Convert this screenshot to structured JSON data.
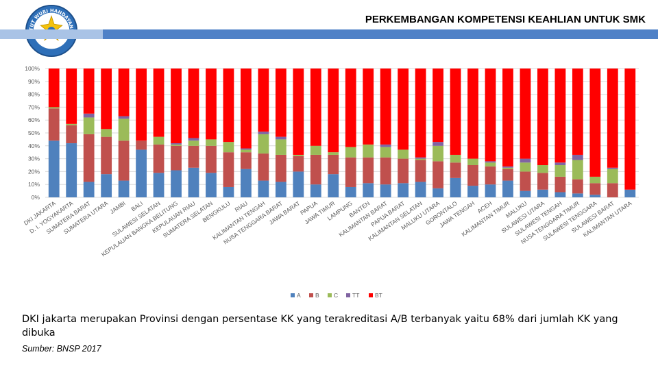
{
  "header": {
    "title": "PERKEMBANGAN KOMPETENSI KEAHLIAN UNTUK SMK",
    "logo_text": "TUT WURI HANDAYANI"
  },
  "caption": "DKI jakarta merupakan Provinsi dengan persentase KK yang terakreditasi A/B terbanyak yaitu 68% dari jumlah KK yang dibuka",
  "source": "Sumber: BNSP 2017",
  "colors": {
    "header_bar": "#4f81c7",
    "header_bar_light": "#a9c3e6",
    "A": "#4f81bd",
    "B": "#c0504d",
    "C": "#9bbb59",
    "TT": "#8064a2",
    "BT": "#ff0000"
  },
  "chart_data": {
    "type": "bar",
    "stacked": true,
    "title": "",
    "xlabel": "",
    "ylabel": "",
    "ylim": [
      0,
      100
    ],
    "y_ticks": [
      "0%",
      "10%",
      "20%",
      "30%",
      "40%",
      "50%",
      "60%",
      "70%",
      "80%",
      "90%",
      "100%"
    ],
    "legend_position": "bottom",
    "categories": [
      "DKI JAKARTA",
      "D. I. YOGYAKARTA",
      "SUMATERA BARAT",
      "SUMATERA UTARA",
      "JAMBI",
      "BALI",
      "SULAWESI SELATAN",
      "KEPULAUAN BANGKA BELITUNG",
      "KEPULAUAN RIAU",
      "SUMATERA SELATAN",
      "BENGKULU",
      "RIAU",
      "KALIMANTAN TENGAH",
      "NUSA TENGGARA BARAT",
      "JAWA BARAT",
      "PAPUA",
      "JAWA TIMUR",
      "LAMPUNG",
      "BANTEN",
      "KALIMANTAN BARAT",
      "PAPUA BARAT",
      "KALIMANTAN SELATAN",
      "MALUKU UTARA",
      "GORONTALO",
      "JAWA TENGAH",
      "ACEH",
      "KALIMANTAN TIMUR",
      "MALUKU",
      "SULAWESI UTARA",
      "SULAWESI TENGAH",
      "NUSA TENGGARA TIMUR",
      "SULAWESI TENGGARA",
      "SULAWESI BARAT",
      "KALIMANTAN UTARA"
    ],
    "series": [
      {
        "name": "A",
        "values": [
          44,
          42,
          12,
          18,
          13,
          37,
          19,
          21,
          23,
          19,
          8,
          22,
          13,
          12,
          20,
          10,
          18,
          8,
          11,
          10,
          11,
          12,
          7,
          15,
          9,
          10,
          13,
          5,
          6,
          4,
          3,
          2,
          0,
          6
        ]
      },
      {
        "name": "B",
        "values": [
          25,
          14,
          37,
          29,
          31,
          7,
          22,
          19,
          17,
          21,
          27,
          13,
          21,
          21,
          12,
          23,
          15,
          23,
          20,
          21,
          19,
          17,
          21,
          12,
          16,
          14,
          9,
          15,
          13,
          12,
          11,
          9,
          11,
          0
        ]
      },
      {
        "name": "C",
        "values": [
          1,
          1,
          13,
          6,
          17,
          0,
          6,
          1,
          4,
          5,
          8,
          2,
          15,
          12,
          1,
          7,
          2,
          8,
          10,
          8,
          7,
          1,
          12,
          6,
          5,
          3,
          1,
          7,
          6,
          9,
          15,
          5,
          11,
          0
        ]
      },
      {
        "name": "TT",
        "values": [
          0,
          0,
          3,
          0,
          2,
          0,
          0,
          1,
          2,
          0,
          0,
          1,
          2,
          2,
          0,
          0,
          0,
          0,
          0,
          2,
          0,
          1,
          3,
          0,
          0,
          1,
          1,
          3,
          0,
          2,
          4,
          0,
          1,
          0
        ]
      },
      {
        "name": "BT",
        "values": [
          30,
          43,
          35,
          47,
          37,
          56,
          53,
          58,
          54,
          55,
          57,
          62,
          49,
          53,
          67,
          60,
          65,
          61,
          59,
          59,
          63,
          69,
          57,
          67,
          70,
          72,
          76,
          70,
          75,
          73,
          67,
          84,
          77,
          94
        ]
      }
    ]
  }
}
